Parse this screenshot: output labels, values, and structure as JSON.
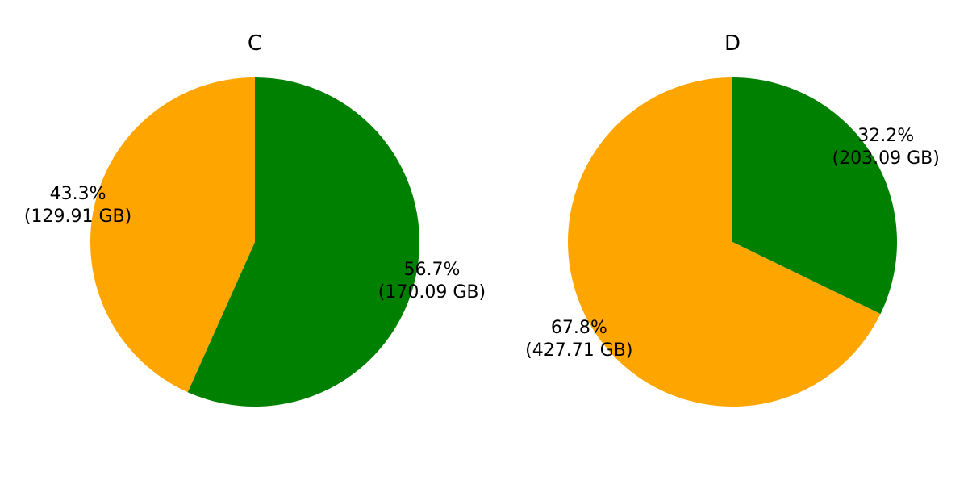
{
  "chart_data": [
    {
      "type": "pie",
      "title": "C",
      "start_angle_deg": 90,
      "direction": "clockwise",
      "slices": [
        {
          "percent_label": "56.7%",
          "size_label": "(170.09 GB)",
          "value": 170.09,
          "color": "#008000"
        },
        {
          "percent_label": "43.3%",
          "size_label": "(129.91 GB)",
          "value": 129.91,
          "color": "#FFA500"
        }
      ]
    },
    {
      "type": "pie",
      "title": "D",
      "start_angle_deg": 90,
      "direction": "clockwise",
      "slices": [
        {
          "percent_label": "32.2%",
          "size_label": "(203.09 GB)",
          "value": 203.09,
          "color": "#008000"
        },
        {
          "percent_label": "67.8%",
          "size_label": "(427.71 GB)",
          "value": 427.71,
          "color": "#FFA500"
        }
      ]
    }
  ]
}
